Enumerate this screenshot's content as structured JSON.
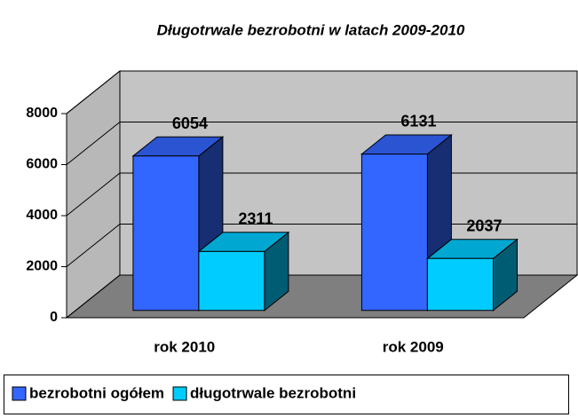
{
  "chart_data": {
    "type": "bar3d",
    "title": "Długotrwale bezrobotni w latach 2009-2010",
    "categories": [
      "rok 2010",
      "rok 2009"
    ],
    "series": [
      {
        "name": "bezrobotni ogółem",
        "color": "#3366ff",
        "values": [
          6054,
          6131
        ]
      },
      {
        "name": "długotrwale bezrobotni",
        "color": "#00ccff",
        "values": [
          2311,
          2037
        ]
      }
    ],
    "ylim": [
      0,
      8000
    ],
    "yticks": [
      0,
      2000,
      4000,
      6000,
      8000
    ],
    "grid": true,
    "legend": "bottom"
  }
}
